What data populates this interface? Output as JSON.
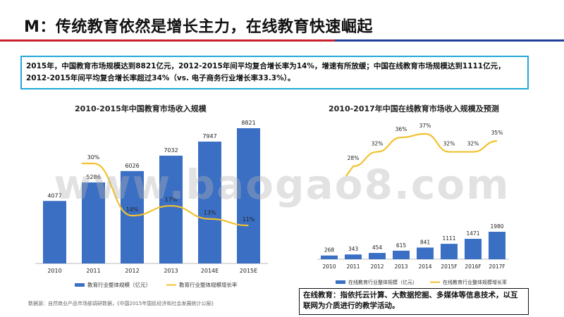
{
  "slide": {
    "title": "M：传统教育依然是增长主力，在线教育快速崛起",
    "summary": "2015年，中国教育市场规模达到8821亿元，2012-2015年间平均复合增长率为14%，增速有所放缓；中国在线教育市场规模达到1111亿元，2012-2015年间平均复合增长率超过34%（vs. 电子商务行业增长率33.3%）。",
    "source": "数据源：自然商业产品市场部调研数据，《中国2015年国民经济和社会发展统计公报》",
    "note": "在线教育：指依托云计算、大数据挖掘、多媒体等信息技术，以互联网为介质进行的教学活动。",
    "watermark": "www.baogao8.com",
    "colors": {
      "bar": "#3a6fc4",
      "line": "#f2c12e",
      "red_rule": "#c8202b",
      "blue_rule": "#1f3f9a",
      "box_border": "#22a7d8"
    }
  },
  "chart_data": [
    {
      "type": "bar",
      "title": "2010-2015年中国教育市场收入规模",
      "categories": [
        "2010",
        "2011",
        "2012",
        "2013",
        "2014E",
        "2015E"
      ],
      "series": [
        {
          "name": "教育行业整体规模（亿元）",
          "type": "bar",
          "values": [
            4077,
            5286,
            6026,
            7032,
            7947,
            8821
          ],
          "labels": [
            "4077",
            "5286",
            "6026",
            "7032",
            "7947",
            "8821"
          ]
        },
        {
          "name": "教育行业整体规模增长率",
          "type": "line",
          "values": [
            null,
            30,
            14,
            17,
            13,
            11
          ],
          "labels": [
            "",
            "30%",
            "14%",
            "17%",
            "13%",
            "11%"
          ]
        }
      ]
    },
    {
      "type": "bar",
      "title": "2010-2017年中国在线教育市场收入规模及预测",
      "categories": [
        "2010",
        "2011",
        "2012",
        "2013",
        "2014",
        "2015F",
        "2016F",
        "2017F"
      ],
      "series": [
        {
          "name": "在线教育行业整体规模（亿元）",
          "type": "bar",
          "values": [
            268,
            343,
            454,
            615,
            841,
            1111,
            1471,
            1980
          ],
          "labels": [
            "268",
            "343",
            "454",
            "615",
            "841",
            "1111",
            "1471",
            "1980"
          ]
        },
        {
          "name": "在线教育行业整体规模增长率",
          "type": "line",
          "values": [
            null,
            28,
            32,
            36,
            37,
            32,
            32,
            35
          ],
          "labels": [
            "",
            "28%",
            "32%",
            "36%",
            "37%",
            "32%",
            "32%",
            "35%"
          ]
        }
      ]
    }
  ]
}
